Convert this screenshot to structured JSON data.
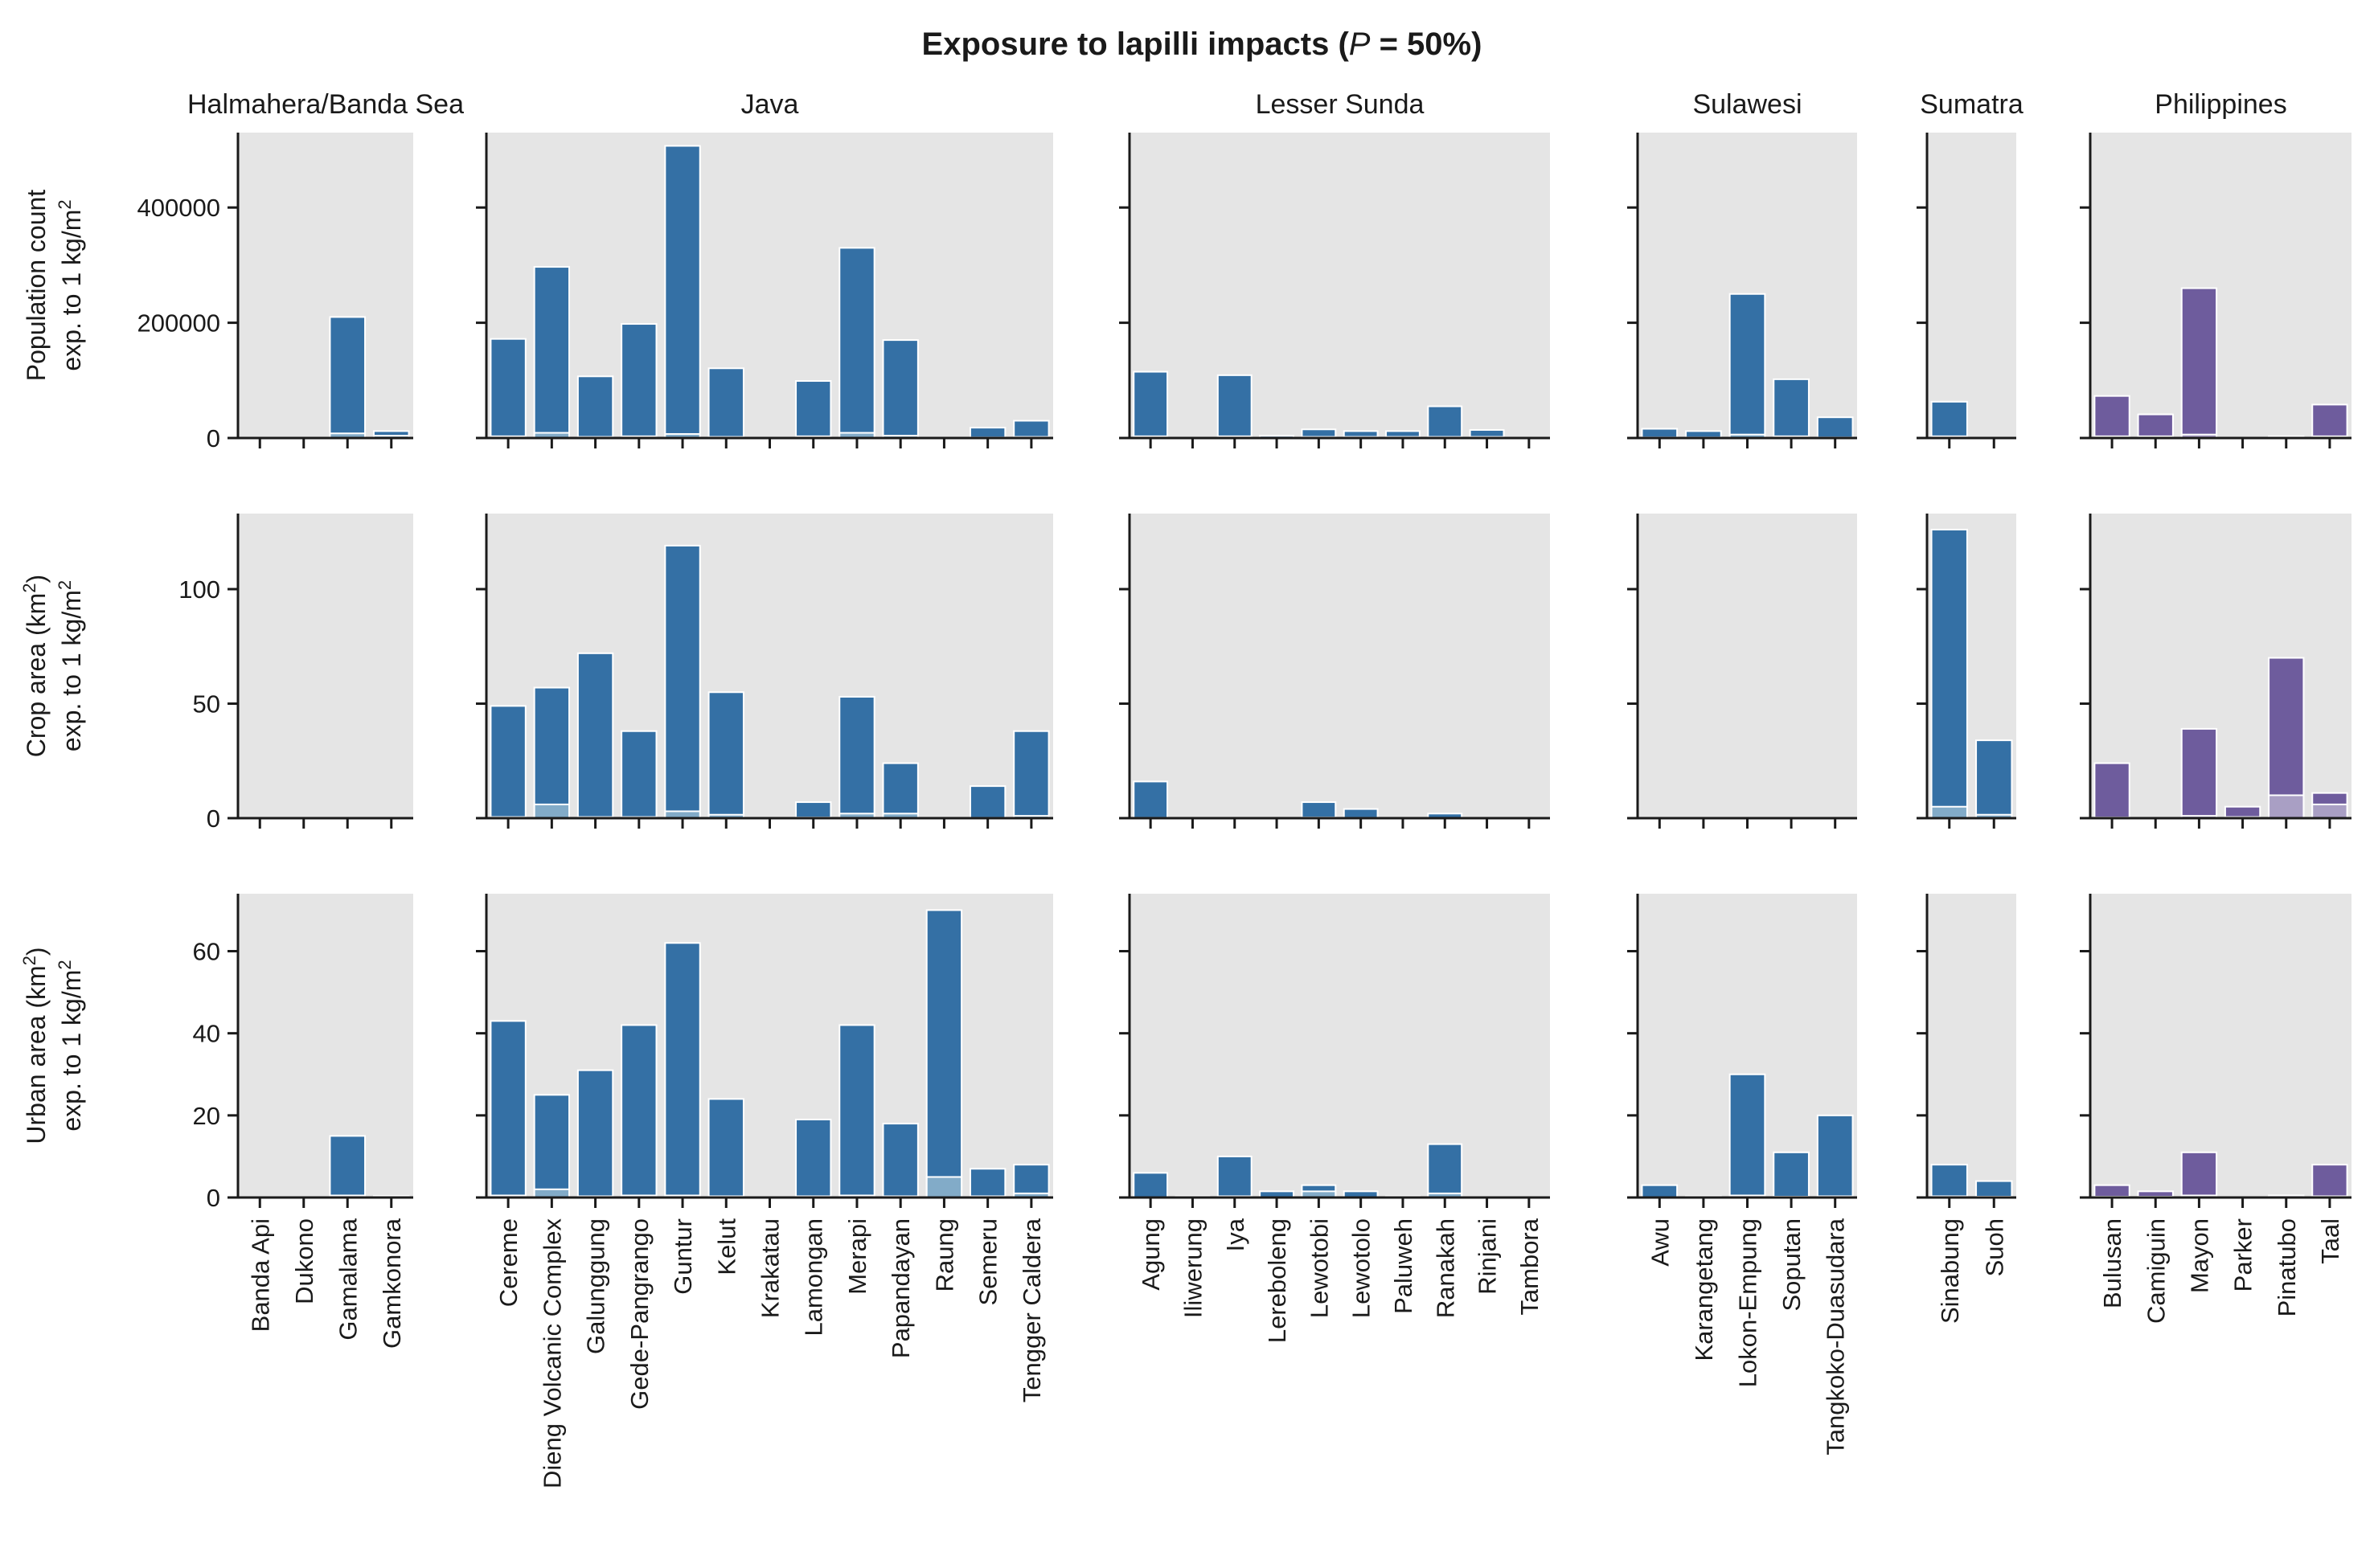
{
  "title": "Exposure to lapilli impacts (P = 50%)",
  "title_main": "Exposure to lapilli impacts (",
  "title_italic": "P",
  "title_tail": " = 50%)",
  "colors": {
    "indonesia": "#3470a5",
    "indonesia_light": "#82abc8",
    "philippines": "#6e5c9d",
    "philippines_light": "#a99fc4",
    "panel_bg": "#e5e5e5"
  },
  "groups": [
    {
      "name": "Halmahera/Banda Sea",
      "volcanoes": [
        "Banda Api",
        "Dukono",
        "Gamalama",
        "Gamkonora"
      ]
    },
    {
      "name": "Java",
      "volcanoes": [
        "Cereme",
        "Dieng Volcanic Complex",
        "Galunggung",
        "Gede-Pangrango",
        "Guntur",
        "Kelut",
        "Krakatau",
        "Lamongan",
        "Merapi",
        "Papandayan",
        "Raung",
        "Semeru",
        "Tengger Caldera"
      ]
    },
    {
      "name": "Lesser Sunda",
      "volcanoes": [
        "Agung",
        "Iliwerung",
        "Iya",
        "Lereboleng",
        "Lewotobi",
        "Lewotolo",
        "Paluweh",
        "Ranakah",
        "Rinjani",
        "Tambora"
      ]
    },
    {
      "name": "Sulawesi",
      "volcanoes": [
        "Awu",
        "Karangetang",
        "Lokon-Empung",
        "Soputan",
        "Tangkoko-Duasudara"
      ]
    },
    {
      "name": "Sumatra",
      "volcanoes": [
        "Sinabung",
        "Suoh"
      ]
    },
    {
      "name": "Philippines",
      "volcanoes": [
        "Bulusan",
        "Camiguin",
        "Mayon",
        "Parker",
        "Pinatubo",
        "Taal"
      ]
    }
  ],
  "rows": [
    {
      "ylabel_line1": "Population count",
      "ylabel_line2_pre": "exp. to 1 kg/m",
      "ylabel_line2_sup": "2",
      "ylabel_mid_sup": "",
      "ylabel_line1_tail": "",
      "ylim": [
        0,
        530000
      ],
      "yticks": [
        0,
        200000,
        400000
      ],
      "ytick_labels": [
        "0",
        "200000",
        "400000"
      ]
    },
    {
      "ylabel_line1": "Crop area (km",
      "ylabel_mid_sup": "2",
      "ylabel_line1_tail": ")",
      "ylabel_line2_pre": "exp. to 1 kg/m",
      "ylabel_line2_sup": "2",
      "ylim": [
        0,
        133
      ],
      "yticks": [
        0,
        50,
        100
      ],
      "ytick_labels": [
        "0",
        "50",
        "100"
      ]
    },
    {
      "ylabel_line1": "Urban area (km",
      "ylabel_mid_sup": "2",
      "ylabel_line1_tail": ")",
      "ylabel_line2_pre": "exp. to 1 kg/m",
      "ylabel_line2_sup": "2",
      "ylim": [
        0,
        74
      ],
      "yticks": [
        0,
        20,
        40,
        60
      ],
      "ytick_labels": [
        "0",
        "20",
        "40",
        "60"
      ]
    }
  ],
  "chart_data": {
    "type": "bar",
    "title": "Exposure to lapilli impacts (P = 50%)",
    "series_note_total": "total bar",
    "values": {
      "population": [
        [
          0,
          0,
          210000,
          12000
        ],
        [
          172000,
          297000,
          107000,
          198000,
          507000,
          121000,
          0,
          99000,
          330000,
          170000,
          0,
          18000,
          30000
        ],
        [
          115000,
          0,
          109000,
          4000,
          15000,
          12000,
          12000,
          55000,
          14000,
          0
        ],
        [
          16000,
          12000,
          250000,
          102000,
          36000
        ],
        [
          63000,
          0
        ],
        [
          73000,
          41000,
          260000,
          0,
          3000,
          58000
        ]
      ],
      "population_inner": [
        [
          0,
          0,
          8000,
          4000
        ],
        [
          3000,
          9000,
          2000,
          3000,
          7000,
          2000,
          0,
          3000,
          9000,
          4000,
          0,
          1000,
          2000
        ],
        [
          3000,
          0,
          3000,
          1000,
          2000,
          2000,
          2000,
          2000,
          2000,
          0
        ],
        [
          1000,
          1000,
          6000,
          3000,
          1000
        ],
        [
          3000,
          0
        ],
        [
          3000,
          3000,
          6000,
          0,
          1000,
          3000
        ]
      ],
      "crop": [
        [
          0,
          0,
          0,
          0
        ],
        [
          49,
          57,
          72,
          38,
          119,
          55,
          0,
          7,
          53,
          24,
          0,
          14,
          38
        ],
        [
          16,
          0,
          0,
          0,
          7,
          4,
          0,
          2,
          0,
          0
        ],
        [
          0,
          0,
          0,
          0,
          0
        ],
        [
          126,
          34
        ],
        [
          24,
          0,
          39,
          5,
          70,
          11
        ]
      ],
      "crop_inner": [
        [
          0,
          0,
          0,
          0
        ],
        [
          0.5,
          6,
          0.5,
          0.5,
          3,
          1.5,
          0,
          0.3,
          2,
          2,
          0,
          0.2,
          1
        ],
        [
          0.2,
          0,
          0,
          0,
          0.3,
          0.2,
          0,
          0.1,
          0,
          0
        ],
        [
          0,
          0,
          0,
          0,
          0
        ],
        [
          5,
          1.5
        ],
        [
          0.3,
          0,
          1,
          0.5,
          10,
          6
        ]
      ],
      "urban": [
        [
          0,
          0,
          15,
          0.4
        ],
        [
          43,
          25,
          31,
          42,
          62,
          24,
          0,
          19,
          42,
          18,
          70,
          7,
          8
        ],
        [
          6,
          0.3,
          10,
          1.5,
          3,
          1.5,
          0.3,
          13,
          0,
          0
        ],
        [
          3,
          0.3,
          30,
          11,
          20
        ],
        [
          8,
          4
        ],
        [
          3,
          1.5,
          11,
          0,
          0.5,
          8
        ]
      ],
      "urban_inner": [
        [
          0,
          0,
          0.5,
          0
        ],
        [
          0.5,
          2,
          0.3,
          0.5,
          0.5,
          0.3,
          0,
          0.3,
          0.5,
          0.3,
          5,
          0.3,
          1
        ],
        [
          0.1,
          0,
          0.3,
          0.1,
          1.5,
          0.1,
          0,
          1,
          0,
          0
        ],
        [
          0.1,
          0,
          0.5,
          0.2,
          0.3
        ],
        [
          0.3,
          0.2
        ],
        [
          0.2,
          0.2,
          0.5,
          0,
          0.1,
          0.3
        ]
      ]
    }
  }
}
